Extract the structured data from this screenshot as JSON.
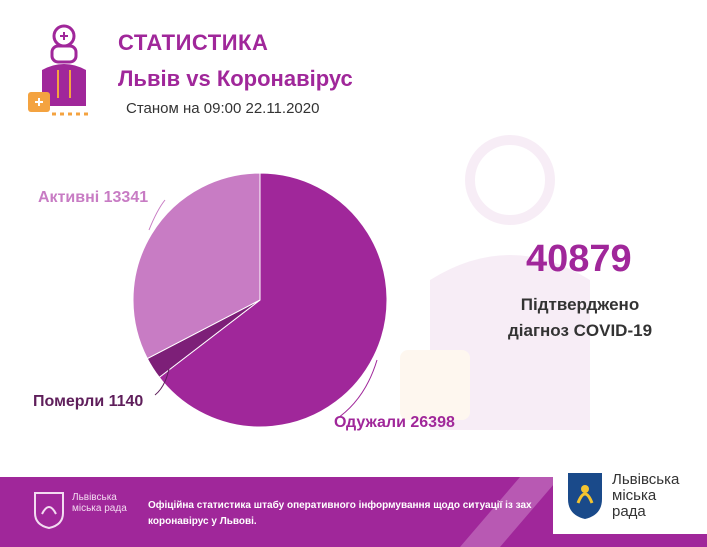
{
  "header": {
    "title": "СТАТИСТИКА",
    "subtitle": "Львів vs Коронавірус",
    "as_of": "Станом на 09:00 22.11.2020"
  },
  "summary": {
    "total": "40879",
    "label_line1": "Підтверджено",
    "label_line2": "діагноз COVID-19"
  },
  "chart_data": {
    "type": "pie",
    "title": "",
    "slices": [
      {
        "label": "Одужали",
        "value": 26398,
        "color": "#a0279a",
        "text": "Одужали 26398"
      },
      {
        "label": "Померли",
        "value": 1140,
        "color": "#7d1f78",
        "text": "Померли 1140"
      },
      {
        "label": "Активні",
        "value": 13341,
        "color": "#c87cc4",
        "text": "Активні 13341"
      }
    ],
    "legend": "labels on slices"
  },
  "footer": {
    "org_name": "Львівська міська рада",
    "description": "Офіційна статистика штабу оперативного інформування щодо ситуації із зах коронавірус у Львові.",
    "badge_text_line1": "Львівська",
    "badge_text_line2": "міська",
    "badge_text_line3": "рада"
  },
  "colors": {
    "accent": "#a0279a",
    "accent_light": "#c87cc4",
    "accent_dark": "#7d1f78",
    "orange": "#f4a340"
  }
}
